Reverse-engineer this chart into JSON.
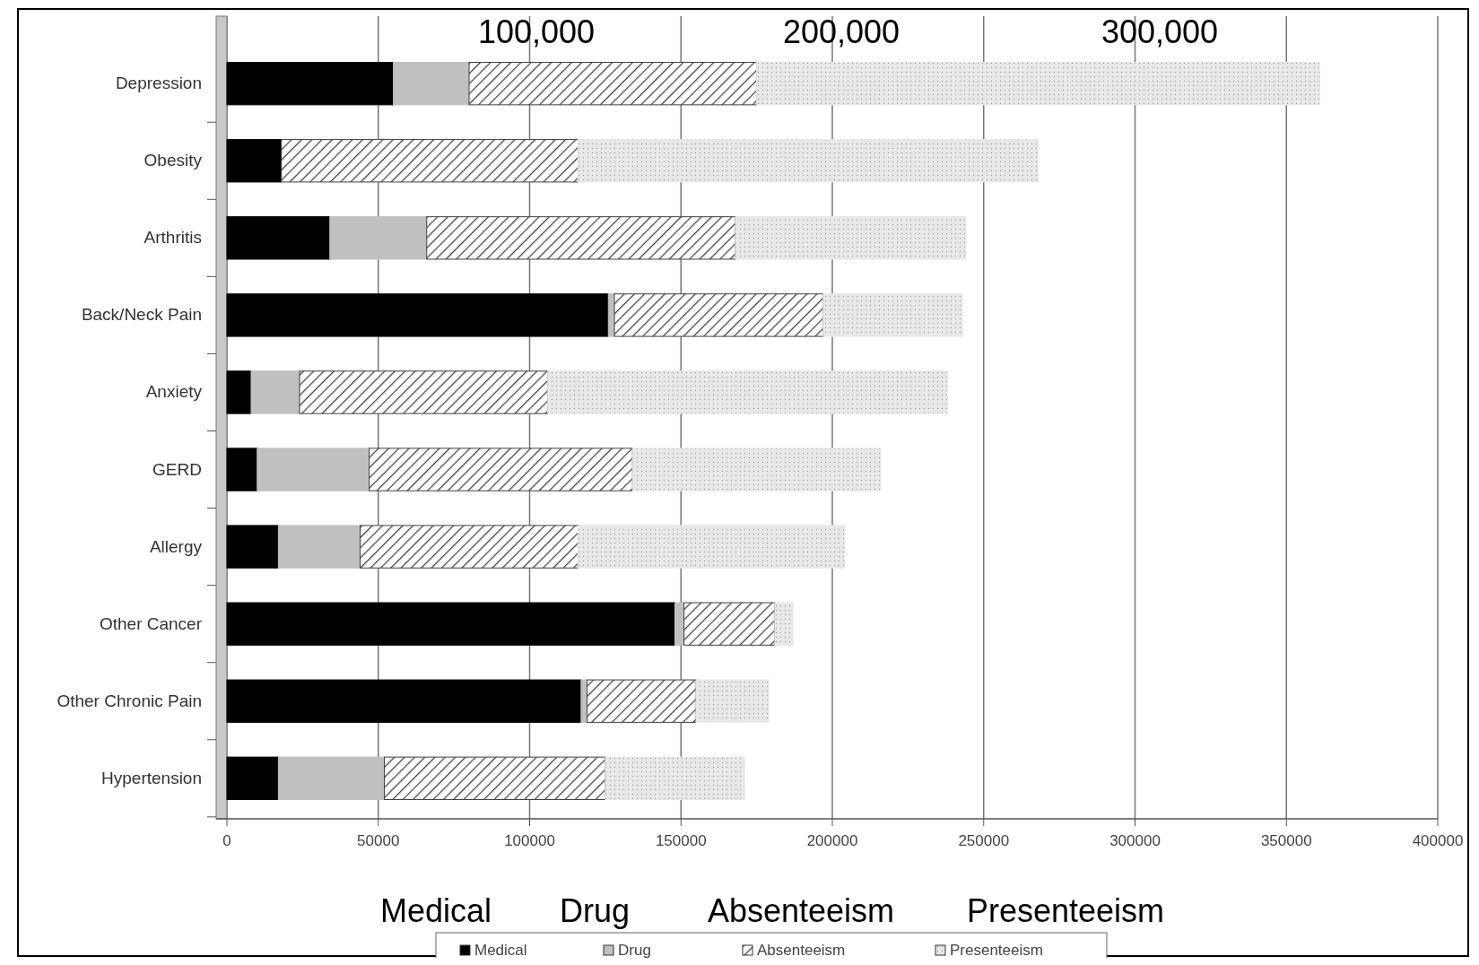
{
  "chart_data": {
    "type": "bar",
    "orientation": "horizontal",
    "stacked": true,
    "categories": [
      "Depression",
      "Obesity",
      "Arthritis",
      "Back/Neck Pain",
      "Anxiety",
      "GERD",
      "Allergy",
      "Other Cancer",
      "Other Chronic Pain",
      "Hypertension"
    ],
    "series": [
      {
        "name": "Medical",
        "color": "#000000",
        "values": [
          55000,
          18000,
          34000,
          126000,
          8000,
          10000,
          17000,
          148000,
          117000,
          17000
        ]
      },
      {
        "name": "Drug",
        "color": "#c0c0c0",
        "values": [
          25000,
          0,
          32000,
          2000,
          16000,
          37000,
          27000,
          3000,
          2000,
          35000
        ]
      },
      {
        "name": "Absenteeism",
        "color": "#404040",
        "values": [
          95000,
          98000,
          102000,
          69000,
          82000,
          87000,
          72000,
          30000,
          36000,
          73000
        ]
      },
      {
        "name": "Presenteeism",
        "color": "#e8e8e8",
        "values": [
          186000,
          152000,
          76000,
          46000,
          132000,
          82000,
          88000,
          6000,
          24000,
          46000
        ]
      }
    ],
    "xlim": [
      0,
      400000
    ],
    "xticks": [
      0,
      50000,
      100000,
      150000,
      200000,
      250000,
      300000,
      350000,
      400000
    ],
    "grid": "x",
    "legend": "bottom",
    "annotations": [
      "100,000",
      "200,000",
      "300,000",
      "Medical",
      "Drug",
      "Absenteeism",
      "Presenteeism"
    ]
  }
}
